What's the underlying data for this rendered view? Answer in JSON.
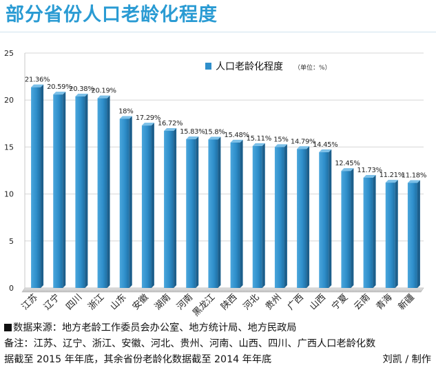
{
  "page": {
    "title": "部分省份人口老龄化程度"
  },
  "chart_data": {
    "type": "bar",
    "title": "部分省份人口老龄化程度",
    "series_name": "人口老龄化程度",
    "unit_note": "（单位：%）",
    "categories": [
      "江苏",
      "辽宁",
      "四川",
      "浙江",
      "山东",
      "安徽",
      "湖南",
      "河南",
      "黑龙江",
      "陕西",
      "河北",
      "贵州",
      "广西",
      "山西",
      "宁夏",
      "云南",
      "青海",
      "新疆"
    ],
    "values": [
      21.36,
      20.59,
      20.38,
      20.19,
      18,
      17.29,
      16.72,
      15.83,
      15.8,
      15.48,
      15.11,
      15,
      14.79,
      14.45,
      12.45,
      11.73,
      11.21,
      11.18
    ],
    "value_labels": [
      "21.36%",
      "20.59%",
      "20.38%",
      "20.19%",
      "18%",
      "17.29%",
      "16.72%",
      "15.83%",
      "15.8%",
      "15.48%",
      "15.11%",
      "15%",
      "14.79%",
      "14.45%",
      "12.45%",
      "11.73%",
      "11.21%",
      "11.18%"
    ],
    "yticks": [
      "0",
      "5",
      "10",
      "15",
      "20",
      "25"
    ],
    "ylim": [
      0,
      25
    ],
    "grid": true,
    "legend_position": "top-right",
    "bar_color": "#2f8fcb"
  },
  "footer": {
    "source": "数据来源：地方老龄工作委员会办公室、地方统计局、地方民政局",
    "note_line1": "备注：江苏、辽宁、浙江、安徽、河北、贵州、河南、山西、四川、广西人口老龄化数",
    "note_line2": "据截至 2015 年年底，其余省份老龄化数据截至 2014 年年底",
    "credit": "刘凯 / 制作"
  }
}
